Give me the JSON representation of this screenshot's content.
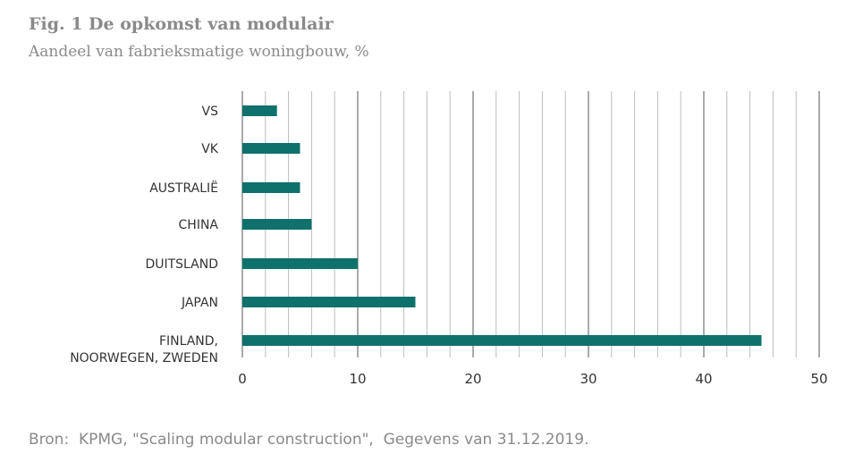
{
  "chart_data": {
    "type": "bar",
    "orientation": "horizontal",
    "title": "Fig. 1 De opkomst van modulair",
    "subtitle": "Aandeel van fabrieksmatige woningbouw, %",
    "categories": [
      "VS",
      "VK",
      "AUSTRALIË",
      "CHINA",
      "DUITSLAND",
      "JAPAN",
      "FINLAND, NOORWEGEN, ZWEDEN"
    ],
    "category_lines": [
      [
        "VS"
      ],
      [
        "VK"
      ],
      [
        "AUSTRALIË"
      ],
      [
        "CHINA"
      ],
      [
        "DUITSLAND"
      ],
      [
        "JAPAN"
      ],
      [
        "FINLAND,",
        "NOORWEGEN, ZWEDEN"
      ]
    ],
    "values": [
      3,
      5,
      5,
      6,
      10,
      15,
      45
    ],
    "xlim": [
      0,
      50
    ],
    "xticks": [
      0,
      10,
      20,
      30,
      40,
      50
    ],
    "minor_grid_step": 2,
    "grid": true,
    "bar_color": "#0f716b",
    "source": "Bron:  KPMG, \"Scaling modular construction\",  Gegevens van 31.12.2019."
  }
}
